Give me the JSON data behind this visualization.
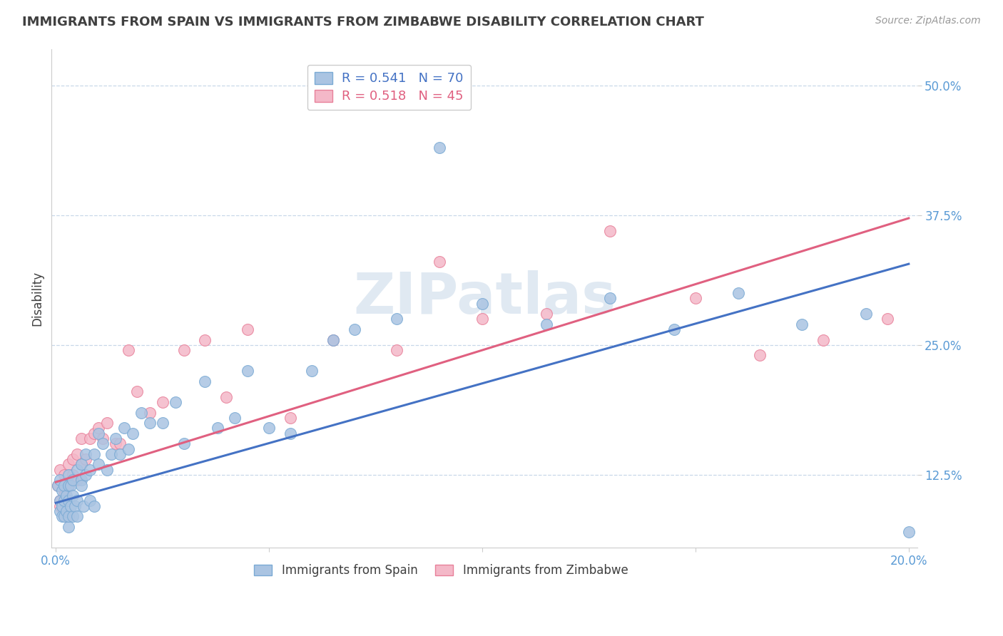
{
  "title": "IMMIGRANTS FROM SPAIN VS IMMIGRANTS FROM ZIMBABWE DISABILITY CORRELATION CHART",
  "source": "Source: ZipAtlas.com",
  "ylabel": "Disability",
  "xlim": [
    -0.001,
    0.202
  ],
  "ylim": [
    0.055,
    0.535
  ],
  "yticks": [
    0.125,
    0.25,
    0.375,
    0.5
  ],
  "ytick_labels": [
    "12.5%",
    "25.0%",
    "37.5%",
    "50.0%"
  ],
  "xticks": [
    0.0,
    0.05,
    0.1,
    0.15,
    0.2
  ],
  "xtick_labels": [
    "0.0%",
    "",
    "",
    "",
    "20.0%"
  ],
  "spain_color": "#aac4e2",
  "spain_edge": "#7aaad4",
  "zimbabwe_color": "#f4b8c8",
  "zimbabwe_edge": "#e8809a",
  "spain_line_color": "#4472c4",
  "zimbabwe_line_color": "#e06080",
  "R_spain": 0.541,
  "N_spain": 70,
  "R_zimbabwe": 0.518,
  "N_zimbabwe": 45,
  "legend_spain": "Immigrants from Spain",
  "legend_zimbabwe": "Immigrants from Zimbabwe",
  "watermark": "ZIPatlas",
  "background_color": "#ffffff",
  "title_color": "#404040",
  "tick_color": "#5b9bd5",
  "grid_color": "#c8d8e8",
  "title_fontsize": 13,
  "legend_fontsize": 12,
  "source_fontsize": 10,
  "spain_line_x": [
    0.0,
    0.2
  ],
  "spain_line_y": [
    0.098,
    0.328
  ],
  "zimbabwe_line_x": [
    0.0,
    0.2
  ],
  "zimbabwe_line_y": [
    0.118,
    0.372
  ],
  "spain_x": [
    0.0005,
    0.001,
    0.001,
    0.001,
    0.0015,
    0.0015,
    0.0015,
    0.002,
    0.002,
    0.002,
    0.0025,
    0.0025,
    0.003,
    0.003,
    0.003,
    0.003,
    0.003,
    0.0035,
    0.0035,
    0.004,
    0.004,
    0.004,
    0.0045,
    0.005,
    0.005,
    0.005,
    0.006,
    0.006,
    0.006,
    0.0065,
    0.007,
    0.007,
    0.008,
    0.008,
    0.009,
    0.009,
    0.01,
    0.01,
    0.011,
    0.012,
    0.013,
    0.014,
    0.015,
    0.016,
    0.017,
    0.018,
    0.02,
    0.022,
    0.025,
    0.028,
    0.03,
    0.035,
    0.038,
    0.042,
    0.045,
    0.05,
    0.055,
    0.06,
    0.065,
    0.07,
    0.08,
    0.09,
    0.1,
    0.115,
    0.13,
    0.145,
    0.16,
    0.175,
    0.19,
    0.2
  ],
  "spain_y": [
    0.115,
    0.1,
    0.09,
    0.12,
    0.085,
    0.095,
    0.11,
    0.085,
    0.1,
    0.115,
    0.09,
    0.105,
    0.075,
    0.085,
    0.1,
    0.115,
    0.125,
    0.095,
    0.115,
    0.085,
    0.105,
    0.12,
    0.095,
    0.085,
    0.1,
    0.13,
    0.12,
    0.135,
    0.115,
    0.095,
    0.125,
    0.145,
    0.1,
    0.13,
    0.095,
    0.145,
    0.135,
    0.165,
    0.155,
    0.13,
    0.145,
    0.16,
    0.145,
    0.17,
    0.15,
    0.165,
    0.185,
    0.175,
    0.175,
    0.195,
    0.155,
    0.215,
    0.17,
    0.18,
    0.225,
    0.17,
    0.165,
    0.225,
    0.255,
    0.265,
    0.275,
    0.44,
    0.29,
    0.27,
    0.295,
    0.265,
    0.3,
    0.27,
    0.28,
    0.07
  ],
  "zimbabwe_x": [
    0.0005,
    0.001,
    0.001,
    0.001,
    0.0015,
    0.002,
    0.002,
    0.002,
    0.0025,
    0.003,
    0.003,
    0.003,
    0.004,
    0.004,
    0.005,
    0.005,
    0.006,
    0.006,
    0.007,
    0.008,
    0.009,
    0.01,
    0.011,
    0.012,
    0.014,
    0.015,
    0.017,
    0.019,
    0.022,
    0.025,
    0.03,
    0.035,
    0.04,
    0.045,
    0.055,
    0.065,
    0.08,
    0.09,
    0.1,
    0.115,
    0.13,
    0.15,
    0.165,
    0.18,
    0.195
  ],
  "zimbabwe_y": [
    0.115,
    0.1,
    0.095,
    0.13,
    0.095,
    0.11,
    0.105,
    0.125,
    0.085,
    0.115,
    0.135,
    0.115,
    0.14,
    0.125,
    0.12,
    0.145,
    0.135,
    0.16,
    0.14,
    0.16,
    0.165,
    0.17,
    0.16,
    0.175,
    0.155,
    0.155,
    0.245,
    0.205,
    0.185,
    0.195,
    0.245,
    0.255,
    0.2,
    0.265,
    0.18,
    0.255,
    0.245,
    0.33,
    0.275,
    0.28,
    0.36,
    0.295,
    0.24,
    0.255,
    0.275
  ]
}
